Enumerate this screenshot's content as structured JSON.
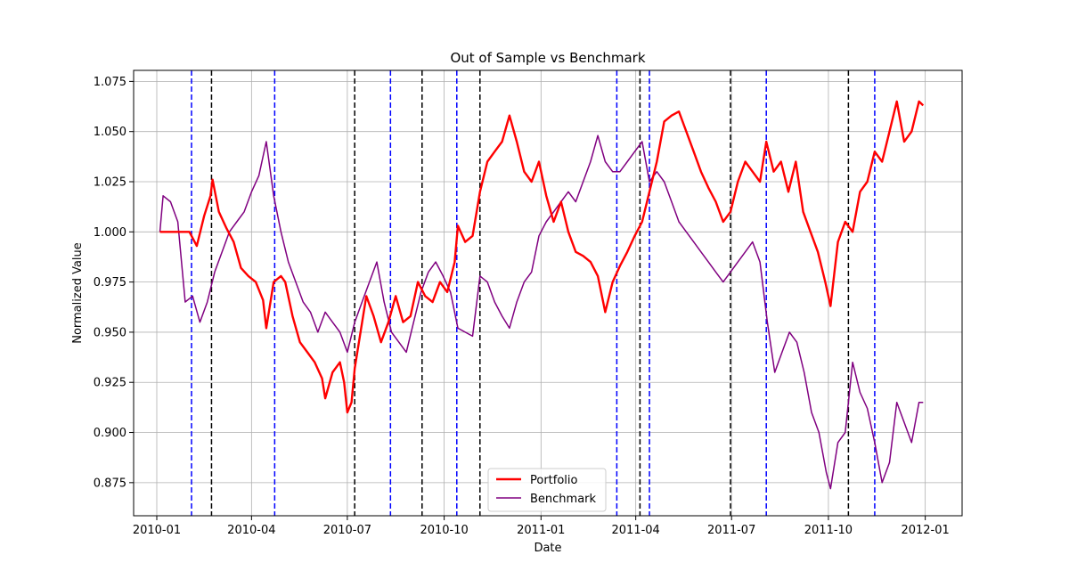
{
  "chart_data": {
    "type": "line",
    "title": "Out of Sample vs Benchmark",
    "xlabel": "Date",
    "ylabel": "Normalized Value",
    "x_range": [
      "2009-12-10",
      "2012-02-05"
    ],
    "ylim": [
      0.8585,
      1.0805
    ],
    "x_ticks": [
      {
        "date": "2010-01-01",
        "label": "2010-01"
      },
      {
        "date": "2010-04-01",
        "label": "2010-04"
      },
      {
        "date": "2010-07-01",
        "label": "2010-07"
      },
      {
        "date": "2010-10-01",
        "label": "2010-10"
      },
      {
        "date": "2011-01-01",
        "label": "2011-01"
      },
      {
        "date": "2011-04-01",
        "label": "2011-04"
      },
      {
        "date": "2011-07-01",
        "label": "2011-07"
      },
      {
        "date": "2011-10-01",
        "label": "2011-10"
      },
      {
        "date": "2012-01-01",
        "label": "2012-01"
      }
    ],
    "y_ticks": [
      0.875,
      0.9,
      0.925,
      0.95,
      0.975,
      1.0,
      1.025,
      1.05,
      1.075
    ],
    "grid": true,
    "legend_position": "bottom-center",
    "vlines_blue": [
      "2010-02-03",
      "2010-04-23",
      "2010-08-11",
      "2010-10-13",
      "2011-03-14",
      "2011-04-14",
      "2011-08-03",
      "2011-11-14"
    ],
    "vlines_black": [
      "2010-02-22",
      "2010-07-08",
      "2010-09-10",
      "2010-11-04",
      "2011-04-05",
      "2011-06-30",
      "2011-10-20"
    ],
    "series": [
      {
        "name": "Portfolio",
        "color": "#ff0000",
        "data": [
          [
            "2010-01-04",
            1.0
          ],
          [
            "2010-01-15",
            1.0
          ],
          [
            "2010-02-01",
            1.0
          ],
          [
            "2010-02-08",
            0.993
          ],
          [
            "2010-02-15",
            1.008
          ],
          [
            "2010-02-21",
            1.018
          ],
          [
            "2010-02-23",
            1.026
          ],
          [
            "2010-03-01",
            1.01
          ],
          [
            "2010-03-08",
            1.002
          ],
          [
            "2010-03-15",
            0.995
          ],
          [
            "2010-03-22",
            0.982
          ],
          [
            "2010-03-29",
            0.978
          ],
          [
            "2010-04-05",
            0.975
          ],
          [
            "2010-04-12",
            0.966
          ],
          [
            "2010-04-15",
            0.952
          ],
          [
            "2010-04-22",
            0.975
          ],
          [
            "2010-04-29",
            0.978
          ],
          [
            "2010-05-03",
            0.975
          ],
          [
            "2010-05-10",
            0.958
          ],
          [
            "2010-05-17",
            0.945
          ],
          [
            "2010-05-24",
            0.94
          ],
          [
            "2010-05-31",
            0.935
          ],
          [
            "2010-06-07",
            0.927
          ],
          [
            "2010-06-10",
            0.917
          ],
          [
            "2010-06-17",
            0.93
          ],
          [
            "2010-06-24",
            0.935
          ],
          [
            "2010-06-28",
            0.925
          ],
          [
            "2010-07-01",
            0.91
          ],
          [
            "2010-07-05",
            0.915
          ],
          [
            "2010-07-08",
            0.932
          ],
          [
            "2010-07-12",
            0.945
          ],
          [
            "2010-07-19",
            0.968
          ],
          [
            "2010-07-26",
            0.958
          ],
          [
            "2010-08-02",
            0.945
          ],
          [
            "2010-08-09",
            0.955
          ],
          [
            "2010-08-16",
            0.968
          ],
          [
            "2010-08-23",
            0.955
          ],
          [
            "2010-08-30",
            0.958
          ],
          [
            "2010-09-06",
            0.975
          ],
          [
            "2010-09-13",
            0.968
          ],
          [
            "2010-09-20",
            0.965
          ],
          [
            "2010-09-27",
            0.975
          ],
          [
            "2010-10-04",
            0.97
          ],
          [
            "2010-10-11",
            0.985
          ],
          [
            "2010-10-14",
            1.003
          ],
          [
            "2010-10-21",
            0.995
          ],
          [
            "2010-10-28",
            0.998
          ],
          [
            "2010-11-04",
            1.02
          ],
          [
            "2010-11-11",
            1.035
          ],
          [
            "2010-11-18",
            1.04
          ],
          [
            "2010-11-25",
            1.045
          ],
          [
            "2010-12-02",
            1.058
          ],
          [
            "2010-12-09",
            1.045
          ],
          [
            "2010-12-16",
            1.03
          ],
          [
            "2010-12-23",
            1.025
          ],
          [
            "2010-12-30",
            1.035
          ],
          [
            "2011-01-06",
            1.018
          ],
          [
            "2011-01-13",
            1.005
          ],
          [
            "2011-01-20",
            1.015
          ],
          [
            "2011-01-27",
            1.0
          ],
          [
            "2011-02-03",
            0.99
          ],
          [
            "2011-02-10",
            0.988
          ],
          [
            "2011-02-17",
            0.985
          ],
          [
            "2011-02-24",
            0.978
          ],
          [
            "2011-03-03",
            0.96
          ],
          [
            "2011-03-10",
            0.975
          ],
          [
            "2011-03-17",
            0.983
          ],
          [
            "2011-03-24",
            0.99
          ],
          [
            "2011-03-31",
            0.998
          ],
          [
            "2011-04-07",
            1.005
          ],
          [
            "2011-04-14",
            1.02
          ],
          [
            "2011-04-21",
            1.035
          ],
          [
            "2011-04-28",
            1.055
          ],
          [
            "2011-05-05",
            1.058
          ],
          [
            "2011-05-12",
            1.06
          ],
          [
            "2011-05-19",
            1.05
          ],
          [
            "2011-05-26",
            1.04
          ],
          [
            "2011-06-02",
            1.03
          ],
          [
            "2011-06-09",
            1.022
          ],
          [
            "2011-06-16",
            1.015
          ],
          [
            "2011-06-23",
            1.005
          ],
          [
            "2011-06-30",
            1.01
          ],
          [
            "2011-07-07",
            1.025
          ],
          [
            "2011-07-14",
            1.035
          ],
          [
            "2011-07-21",
            1.03
          ],
          [
            "2011-07-28",
            1.025
          ],
          [
            "2011-08-03",
            1.045
          ],
          [
            "2011-08-10",
            1.03
          ],
          [
            "2011-08-17",
            1.035
          ],
          [
            "2011-08-24",
            1.02
          ],
          [
            "2011-08-31",
            1.035
          ],
          [
            "2011-09-07",
            1.01
          ],
          [
            "2011-09-14",
            1.0
          ],
          [
            "2011-09-21",
            0.99
          ],
          [
            "2011-09-28",
            0.975
          ],
          [
            "2011-10-03",
            0.963
          ],
          [
            "2011-10-10",
            0.995
          ],
          [
            "2011-10-17",
            1.005
          ],
          [
            "2011-10-24",
            1.0
          ],
          [
            "2011-10-31",
            1.02
          ],
          [
            "2011-11-07",
            1.025
          ],
          [
            "2011-11-14",
            1.04
          ],
          [
            "2011-11-21",
            1.035
          ],
          [
            "2011-11-28",
            1.05
          ],
          [
            "2011-12-05",
            1.065
          ],
          [
            "2011-12-12",
            1.045
          ],
          [
            "2011-12-19",
            1.05
          ],
          [
            "2011-12-26",
            1.065
          ],
          [
            "2011-12-30",
            1.063
          ]
        ]
      },
      {
        "name": "Benchmark",
        "color": "#800080",
        "data": [
          [
            "2010-01-04",
            1.0
          ],
          [
            "2010-01-07",
            1.018
          ],
          [
            "2010-01-14",
            1.015
          ],
          [
            "2010-01-21",
            1.005
          ],
          [
            "2010-01-28",
            0.965
          ],
          [
            "2010-02-04",
            0.968
          ],
          [
            "2010-02-11",
            0.955
          ],
          [
            "2010-02-18",
            0.965
          ],
          [
            "2010-02-25",
            0.98
          ],
          [
            "2010-03-04",
            0.99
          ],
          [
            "2010-03-11",
            1.0
          ],
          [
            "2010-03-18",
            1.005
          ],
          [
            "2010-03-25",
            1.01
          ],
          [
            "2010-04-01",
            1.02
          ],
          [
            "2010-04-08",
            1.028
          ],
          [
            "2010-04-15",
            1.045
          ],
          [
            "2010-04-22",
            1.018
          ],
          [
            "2010-04-29",
            1.0
          ],
          [
            "2010-05-06",
            0.985
          ],
          [
            "2010-05-13",
            0.975
          ],
          [
            "2010-05-20",
            0.965
          ],
          [
            "2010-05-27",
            0.96
          ],
          [
            "2010-06-03",
            0.95
          ],
          [
            "2010-06-10",
            0.96
          ],
          [
            "2010-06-17",
            0.955
          ],
          [
            "2010-06-24",
            0.95
          ],
          [
            "2010-07-01",
            0.94
          ],
          [
            "2010-07-08",
            0.955
          ],
          [
            "2010-07-15",
            0.965
          ],
          [
            "2010-07-22",
            0.975
          ],
          [
            "2010-07-29",
            0.985
          ],
          [
            "2010-08-05",
            0.965
          ],
          [
            "2010-08-12",
            0.95
          ],
          [
            "2010-08-19",
            0.945
          ],
          [
            "2010-08-26",
            0.94
          ],
          [
            "2010-09-02",
            0.955
          ],
          [
            "2010-09-09",
            0.97
          ],
          [
            "2010-09-16",
            0.98
          ],
          [
            "2010-09-23",
            0.985
          ],
          [
            "2010-09-30",
            0.978
          ],
          [
            "2010-10-07",
            0.97
          ],
          [
            "2010-10-14",
            0.952
          ],
          [
            "2010-10-21",
            0.95
          ],
          [
            "2010-10-28",
            0.948
          ],
          [
            "2010-11-04",
            0.978
          ],
          [
            "2010-11-11",
            0.975
          ],
          [
            "2010-11-18",
            0.965
          ],
          [
            "2010-11-25",
            0.958
          ],
          [
            "2010-12-02",
            0.952
          ],
          [
            "2010-12-09",
            0.965
          ],
          [
            "2010-12-16",
            0.975
          ],
          [
            "2010-12-23",
            0.98
          ],
          [
            "2010-12-30",
            0.998
          ],
          [
            "2011-01-06",
            1.005
          ],
          [
            "2011-01-13",
            1.01
          ],
          [
            "2011-01-20",
            1.015
          ],
          [
            "2011-01-27",
            1.02
          ],
          [
            "2011-02-03",
            1.015
          ],
          [
            "2011-02-10",
            1.025
          ],
          [
            "2011-02-17",
            1.035
          ],
          [
            "2011-02-24",
            1.048
          ],
          [
            "2011-03-03",
            1.035
          ],
          [
            "2011-03-10",
            1.03
          ],
          [
            "2011-03-17",
            1.03
          ],
          [
            "2011-03-24",
            1.035
          ],
          [
            "2011-03-31",
            1.04
          ],
          [
            "2011-04-07",
            1.045
          ],
          [
            "2011-04-14",
            1.025
          ],
          [
            "2011-04-21",
            1.03
          ],
          [
            "2011-04-28",
            1.025
          ],
          [
            "2011-05-05",
            1.015
          ],
          [
            "2011-05-12",
            1.005
          ],
          [
            "2011-05-19",
            1.0
          ],
          [
            "2011-05-26",
            0.995
          ],
          [
            "2011-06-02",
            0.99
          ],
          [
            "2011-06-09",
            0.985
          ],
          [
            "2011-06-16",
            0.98
          ],
          [
            "2011-06-23",
            0.975
          ],
          [
            "2011-06-30",
            0.98
          ],
          [
            "2011-07-07",
            0.985
          ],
          [
            "2011-07-14",
            0.99
          ],
          [
            "2011-07-21",
            0.995
          ],
          [
            "2011-07-28",
            0.985
          ],
          [
            "2011-08-04",
            0.955
          ],
          [
            "2011-08-11",
            0.93
          ],
          [
            "2011-08-18",
            0.94
          ],
          [
            "2011-08-25",
            0.95
          ],
          [
            "2011-09-01",
            0.945
          ],
          [
            "2011-09-08",
            0.93
          ],
          [
            "2011-09-15",
            0.91
          ],
          [
            "2011-09-22",
            0.9
          ],
          [
            "2011-09-29",
            0.88
          ],
          [
            "2011-10-03",
            0.872
          ],
          [
            "2011-10-10",
            0.895
          ],
          [
            "2011-10-17",
            0.9
          ],
          [
            "2011-10-24",
            0.935
          ],
          [
            "2011-10-31",
            0.92
          ],
          [
            "2011-11-07",
            0.912
          ],
          [
            "2011-11-14",
            0.895
          ],
          [
            "2011-11-21",
            0.875
          ],
          [
            "2011-11-28",
            0.885
          ],
          [
            "2011-12-05",
            0.915
          ],
          [
            "2011-12-12",
            0.905
          ],
          [
            "2011-12-19",
            0.895
          ],
          [
            "2011-12-26",
            0.915
          ],
          [
            "2011-12-30",
            0.915
          ]
        ]
      }
    ]
  }
}
